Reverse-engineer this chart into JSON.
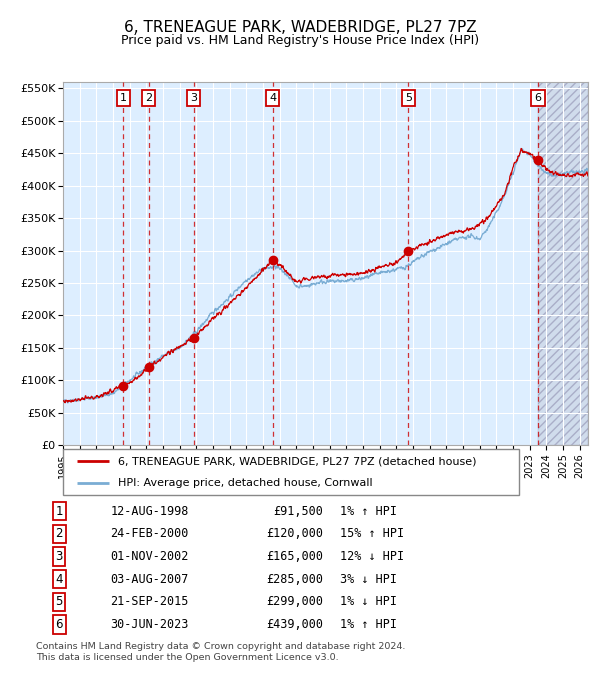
{
  "title": "6, TRENEAGUE PARK, WADEBRIDGE, PL27 7PZ",
  "subtitle": "Price paid vs. HM Land Registry's House Price Index (HPI)",
  "legend_property": "6, TRENEAGUE PARK, WADEBRIDGE, PL27 7PZ (detached house)",
  "legend_hpi": "HPI: Average price, detached house, Cornwall",
  "footer1": "Contains HM Land Registry data © Crown copyright and database right 2024.",
  "footer2": "This data is licensed under the Open Government Licence v3.0.",
  "transactions": [
    {
      "id": 1,
      "date": "12-AUG-1998",
      "price": 91500,
      "pct": "1%",
      "dir": "↑"
    },
    {
      "id": 2,
      "date": "24-FEB-2000",
      "price": 120000,
      "pct": "15%",
      "dir": "↑"
    },
    {
      "id": 3,
      "date": "01-NOV-2002",
      "price": 165000,
      "pct": "12%",
      "dir": "↓"
    },
    {
      "id": 4,
      "date": "03-AUG-2007",
      "price": 285000,
      "pct": "3%",
      "dir": "↓"
    },
    {
      "id": 5,
      "date": "21-SEP-2015",
      "price": 299000,
      "pct": "1%",
      "dir": "↓"
    },
    {
      "id": 6,
      "date": "30-JUN-2023",
      "price": 439000,
      "pct": "1%",
      "dir": "↑"
    }
  ],
  "transaction_years": [
    1998.614,
    2000.146,
    2002.836,
    2007.586,
    2015.725,
    2023.496
  ],
  "ylim": [
    0,
    560000
  ],
  "yticks": [
    0,
    50000,
    100000,
    150000,
    200000,
    250000,
    300000,
    350000,
    400000,
    450000,
    500000,
    550000
  ],
  "xlim_start": 1995.0,
  "xlim_end": 2026.5,
  "xticks": [
    1995,
    1996,
    1997,
    1998,
    1999,
    2000,
    2001,
    2002,
    2003,
    2004,
    2005,
    2006,
    2007,
    2008,
    2009,
    2010,
    2011,
    2012,
    2013,
    2014,
    2015,
    2016,
    2017,
    2018,
    2019,
    2020,
    2021,
    2022,
    2023,
    2024,
    2025,
    2026
  ],
  "property_color": "#cc0000",
  "hpi_color": "#7aadd4",
  "background_color": "#ddeeff",
  "hatch_area_start": 2023.496,
  "title_fontsize": 11,
  "subtitle_fontsize": 9,
  "hpi_key_years": [
    1995.0,
    1996.0,
    1997.0,
    1998.0,
    1999.0,
    2000.0,
    2001.0,
    2002.0,
    2003.0,
    2004.0,
    2005.0,
    2006.0,
    2007.0,
    2007.8,
    2008.5,
    2009.0,
    2009.5,
    2010.0,
    2010.5,
    2011.0,
    2011.5,
    2012.0,
    2012.5,
    2013.0,
    2013.5,
    2014.0,
    2014.5,
    2015.0,
    2015.5,
    2016.0,
    2016.5,
    2017.0,
    2017.5,
    2018.0,
    2018.5,
    2019.0,
    2019.5,
    2020.0,
    2020.5,
    2021.0,
    2021.5,
    2022.0,
    2022.5,
    2023.0,
    2023.5,
    2024.0,
    2024.5,
    2025.0,
    2025.5,
    2026.5
  ],
  "hpi_key_values": [
    68000,
    71000,
    74000,
    80000,
    100000,
    120000,
    138000,
    150000,
    175000,
    205000,
    228000,
    255000,
    272000,
    275000,
    262000,
    245000,
    245000,
    248000,
    252000,
    252000,
    253000,
    253000,
    255000,
    257000,
    261000,
    265000,
    268000,
    271000,
    274000,
    282000,
    290000,
    298000,
    304000,
    310000,
    316000,
    320000,
    322000,
    318000,
    335000,
    358000,
    385000,
    420000,
    455000,
    448000,
    432000,
    418000,
    415000,
    418000,
    420000,
    422000
  ],
  "prop_key_years": [
    1995.0,
    1997.0,
    1998.614,
    1999.5,
    2000.146,
    2001.5,
    2002.836,
    2004.0,
    2005.5,
    2007.0,
    2007.586,
    2008.0,
    2008.5,
    2009.0,
    2009.5,
    2010.0,
    2010.5,
    2011.0,
    2011.5,
    2012.0,
    2012.5,
    2013.0,
    2013.5,
    2014.0,
    2014.5,
    2015.0,
    2015.725,
    2016.5,
    2017.5,
    2018.5,
    2019.5,
    2020.5,
    2021.5,
    2022.0,
    2022.5,
    2023.0,
    2023.496,
    2024.0,
    2024.5,
    2025.0,
    2026.5
  ],
  "prop_key_values": [
    68000,
    74000,
    91500,
    105000,
    120000,
    145000,
    165000,
    195000,
    230000,
    270000,
    285000,
    278000,
    265000,
    252000,
    255000,
    258000,
    260000,
    260000,
    262000,
    262000,
    264000,
    266000,
    270000,
    274000,
    277000,
    281000,
    299000,
    308000,
    318000,
    328000,
    332000,
    350000,
    388000,
    428000,
    455000,
    448000,
    439000,
    425000,
    418000,
    416000,
    418000
  ]
}
